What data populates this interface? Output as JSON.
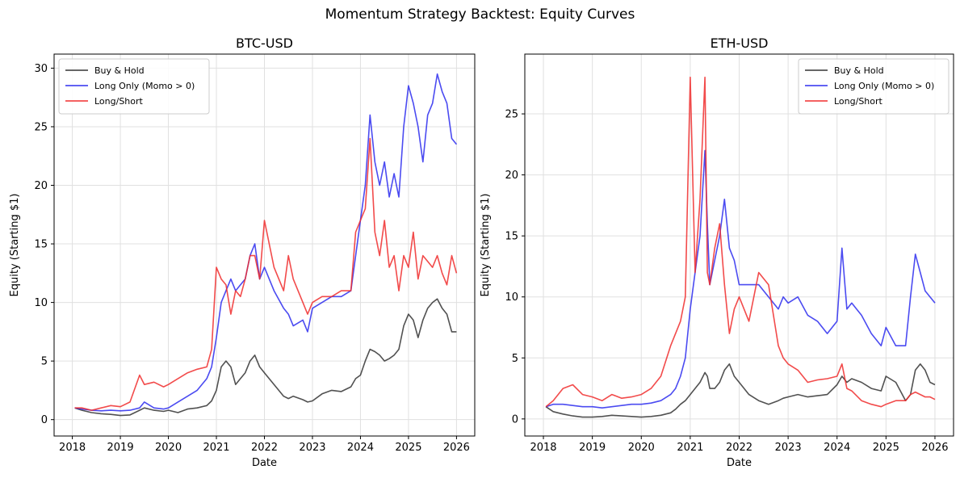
{
  "figure": {
    "title": "Momentum Strategy Backtest: Equity Curves"
  },
  "colors": {
    "buy_hold": "#333333",
    "long_only": "#2b2bee",
    "long_short": "#f02b2b",
    "grid": "#e0e0e0"
  },
  "chart_data": [
    {
      "type": "line",
      "title": "BTC-USD",
      "xlabel": "Date",
      "ylabel": "Equity (Starting $1)",
      "x_ticks": [
        "2018",
        "2019",
        "2020",
        "2021",
        "2022",
        "2023",
        "2024",
        "2025",
        "2026"
      ],
      "y_ticks": [
        0,
        5,
        10,
        15,
        20,
        25,
        30
      ],
      "xlim": [
        2017.62,
        2026.38
      ],
      "ylim": [
        -1.4,
        31.2
      ],
      "grid": true,
      "legend": "top-left",
      "x": [
        2018.05,
        2018.2,
        2018.4,
        2018.6,
        2018.8,
        2019.0,
        2019.2,
        2019.4,
        2019.5,
        2019.7,
        2019.9,
        2020.0,
        2020.2,
        2020.4,
        2020.6,
        2020.8,
        2020.9,
        2021.0,
        2021.1,
        2021.2,
        2021.3,
        2021.4,
        2021.5,
        2021.6,
        2021.7,
        2021.8,
        2021.9,
        2022.0,
        2022.2,
        2022.4,
        2022.5,
        2022.6,
        2022.8,
        2022.9,
        2023.0,
        2023.2,
        2023.4,
        2023.6,
        2023.8,
        2023.9,
        2024.0,
        2024.1,
        2024.2,
        2024.3,
        2024.4,
        2024.5,
        2024.6,
        2024.7,
        2024.8,
        2024.9,
        2025.0,
        2025.1,
        2025.2,
        2025.3,
        2025.4,
        2025.5,
        2025.6,
        2025.7,
        2025.8,
        2025.9,
        2026.0
      ],
      "series": [
        {
          "name": "Buy & Hold",
          "values": [
            1.0,
            0.8,
            0.6,
            0.5,
            0.45,
            0.35,
            0.4,
            0.8,
            1.0,
            0.8,
            0.7,
            0.8,
            0.6,
            0.9,
            1.0,
            1.2,
            1.6,
            2.5,
            4.5,
            5.0,
            4.5,
            3.0,
            3.5,
            4.0,
            5.0,
            5.5,
            4.5,
            4.0,
            3.0,
            2.0,
            1.8,
            2.0,
            1.7,
            1.5,
            1.6,
            2.2,
            2.5,
            2.4,
            2.8,
            3.5,
            3.8,
            5.0,
            6.0,
            5.8,
            5.5,
            5.0,
            5.2,
            5.5,
            6.0,
            8.0,
            9.0,
            8.5,
            7.0,
            8.5,
            9.5,
            10.0,
            10.3,
            9.5,
            9.0,
            7.5,
            7.5
          ]
        },
        {
          "name": "Long Only (Momo > 0)",
          "values": [
            1.0,
            0.9,
            0.8,
            0.75,
            0.8,
            0.75,
            0.8,
            1.0,
            1.5,
            1.0,
            0.9,
            1.0,
            1.5,
            2.0,
            2.5,
            3.5,
            4.5,
            7.0,
            10.0,
            11.0,
            12.0,
            11.0,
            11.5,
            12.0,
            14.0,
            15.0,
            12.0,
            13.0,
            11.0,
            9.5,
            9.0,
            8.0,
            8.5,
            7.5,
            9.5,
            10.0,
            10.5,
            10.5,
            11.0,
            14.0,
            17.0,
            20.0,
            26.0,
            22.0,
            20.0,
            22.0,
            19.0,
            21.0,
            19.0,
            25.0,
            28.5,
            27.0,
            25.0,
            22.0,
            26.0,
            27.0,
            29.5,
            28.0,
            27.0,
            24.0,
            23.5
          ]
        },
        {
          "name": "Long/Short",
          "values": [
            1.0,
            1.0,
            0.8,
            1.0,
            1.2,
            1.1,
            1.5,
            3.8,
            3.0,
            3.2,
            2.8,
            3.0,
            3.5,
            4.0,
            4.3,
            4.5,
            6.0,
            13.0,
            12.0,
            11.5,
            9.0,
            11.0,
            10.5,
            12.0,
            14.0,
            14.0,
            12.0,
            17.0,
            13.0,
            11.0,
            14.0,
            12.0,
            10.0,
            9.0,
            10.0,
            10.5,
            10.5,
            11.0,
            11.0,
            16.0,
            17.0,
            18.0,
            24.0,
            16.0,
            14.0,
            17.0,
            13.0,
            14.0,
            11.0,
            14.0,
            13.0,
            16.0,
            12.0,
            14.0,
            13.5,
            13.0,
            14.0,
            12.5,
            11.5,
            14.0,
            12.5
          ]
        }
      ]
    },
    {
      "type": "line",
      "title": "ETH-USD",
      "xlabel": "Date",
      "ylabel": "Equity (Starting $1)",
      "x_ticks": [
        "2018",
        "2019",
        "2020",
        "2021",
        "2022",
        "2023",
        "2024",
        "2025",
        "2026"
      ],
      "y_ticks": [
        0,
        5,
        10,
        15,
        20,
        25
      ],
      "xlim": [
        2017.62,
        2026.38
      ],
      "ylim": [
        -1.4,
        29.9
      ],
      "grid": true,
      "legend": "top-right",
      "x": [
        2018.05,
        2018.2,
        2018.4,
        2018.6,
        2018.8,
        2019.0,
        2019.2,
        2019.4,
        2019.6,
        2019.8,
        2020.0,
        2020.2,
        2020.4,
        2020.6,
        2020.7,
        2020.8,
        2020.9,
        2021.0,
        2021.1,
        2021.2,
        2021.3,
        2021.35,
        2021.4,
        2021.5,
        2021.6,
        2021.7,
        2021.8,
        2021.9,
        2022.0,
        2022.2,
        2022.4,
        2022.6,
        2022.8,
        2022.9,
        2023.0,
        2023.2,
        2023.4,
        2023.6,
        2023.8,
        2024.0,
        2024.1,
        2024.2,
        2024.3,
        2024.5,
        2024.7,
        2024.9,
        2025.0,
        2025.2,
        2025.4,
        2025.5,
        2025.6,
        2025.7,
        2025.8,
        2025.9,
        2026.0
      ],
      "series": [
        {
          "name": "Buy & Hold",
          "values": [
            1.0,
            0.6,
            0.4,
            0.25,
            0.15,
            0.15,
            0.2,
            0.3,
            0.25,
            0.2,
            0.15,
            0.2,
            0.3,
            0.5,
            0.8,
            1.2,
            1.5,
            2.0,
            2.5,
            3.0,
            3.8,
            3.5,
            2.5,
            2.5,
            3.0,
            4.0,
            4.5,
            3.5,
            3.0,
            2.0,
            1.5,
            1.2,
            1.5,
            1.7,
            1.8,
            2.0,
            1.8,
            1.9,
            2.0,
            2.8,
            3.5,
            3.0,
            3.3,
            3.0,
            2.5,
            2.3,
            3.5,
            3.0,
            1.5,
            2.0,
            4.0,
            4.5,
            4.0,
            3.0,
            2.8
          ]
        },
        {
          "name": "Long Only (Momo > 0)",
          "values": [
            1.0,
            1.2,
            1.2,
            1.1,
            1.0,
            1.0,
            0.9,
            1.0,
            1.1,
            1.2,
            1.2,
            1.3,
            1.5,
            2.0,
            2.5,
            3.5,
            5.0,
            9.0,
            12.0,
            15.0,
            22.0,
            16.0,
            11.0,
            13.0,
            15.0,
            18.0,
            14.0,
            13.0,
            11.0,
            11.0,
            11.0,
            10.0,
            9.0,
            10.0,
            9.5,
            10.0,
            8.5,
            8.0,
            7.0,
            8.0,
            14.0,
            9.0,
            9.5,
            8.5,
            7.0,
            6.0,
            7.5,
            6.0,
            6.0,
            10.0,
            13.5,
            12.0,
            10.5,
            10.0,
            9.5
          ]
        },
        {
          "name": "Long/Short",
          "values": [
            1.0,
            1.5,
            2.5,
            2.8,
            2.0,
            1.8,
            1.5,
            2.0,
            1.7,
            1.8,
            2.0,
            2.5,
            3.5,
            6.0,
            7.0,
            8.0,
            10.0,
            28.0,
            12.0,
            18.0,
            28.0,
            12.0,
            11.0,
            14.0,
            16.0,
            11.0,
            7.0,
            9.0,
            10.0,
            8.0,
            12.0,
            11.0,
            6.0,
            5.0,
            4.5,
            4.0,
            3.0,
            3.2,
            3.3,
            3.5,
            4.5,
            2.5,
            2.3,
            1.5,
            1.2,
            1.0,
            1.2,
            1.5,
            1.5,
            2.0,
            2.2,
            2.0,
            1.8,
            1.8,
            1.6
          ]
        }
      ]
    }
  ]
}
